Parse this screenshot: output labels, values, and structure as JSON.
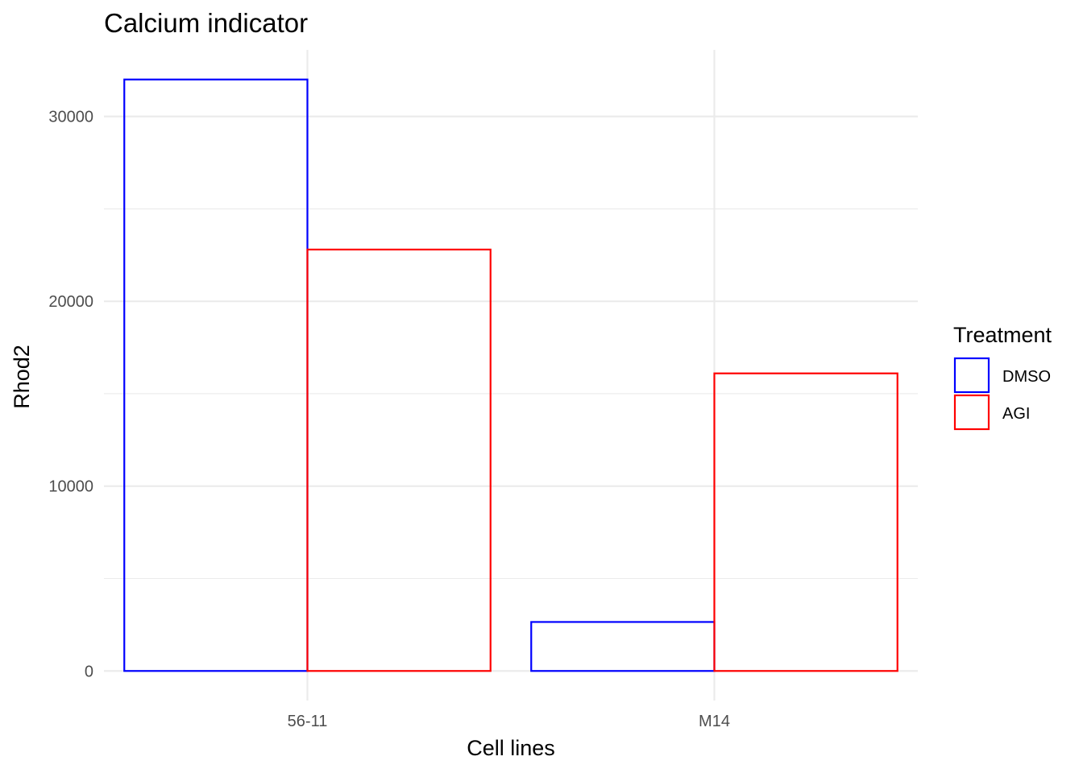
{
  "chart_data": {
    "type": "bar",
    "title": "Calcium indicator",
    "xlabel": "Cell lines",
    "ylabel": "Rhod2",
    "categories": [
      "56-11",
      "M14"
    ],
    "series": [
      {
        "name": "DMSO",
        "values": [
          32000,
          2650
        ],
        "color": "#0000ff"
      },
      {
        "name": "AGI",
        "values": [
          22800,
          16100
        ],
        "color": "#ff0000"
      }
    ],
    "ylim": [
      -1600,
      33600
    ],
    "yticks": [
      0,
      10000,
      20000,
      30000
    ],
    "yticks_minor": [
      5000,
      15000,
      25000
    ],
    "grid": true,
    "fill": "none",
    "legend": {
      "title": "Treatment",
      "position": "right"
    }
  }
}
